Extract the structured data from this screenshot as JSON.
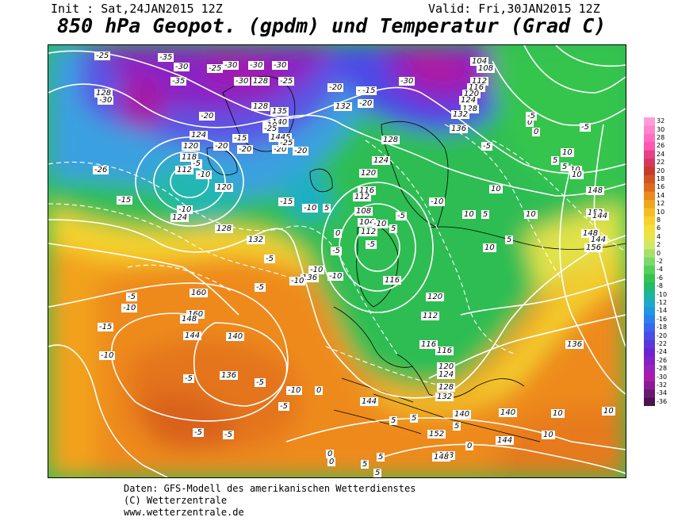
{
  "header": {
    "init": "Init : Sat,24JAN2015 12Z",
    "valid": "Valid: Fri,30JAN2015 12Z",
    "title": "850 hPa Geopot. (gpdm) und Temperatur (Grad C)"
  },
  "legend": {
    "labels": [
      "32",
      "30",
      "28",
      "26",
      "24",
      "22",
      "20",
      "18",
      "16",
      "14",
      "12",
      "10",
      "8",
      "6",
      "4",
      "2",
      "0",
      "-2",
      "-4",
      "-6",
      "-8",
      "-10",
      "-12",
      "-14",
      "-16",
      "-18",
      "-20",
      "-22",
      "-24",
      "-26",
      "-28",
      "-30",
      "-32",
      "-34",
      "-36"
    ],
    "colors": [
      "#ff9ed6",
      "#ff86cc",
      "#ff6ec2",
      "#ff56b0",
      "#e84086",
      "#d8385c",
      "#c83a2e",
      "#d25322",
      "#e06a1c",
      "#eb8a1e",
      "#f0a51c",
      "#f4be22",
      "#f7d12c",
      "#f5de3c",
      "#e6e64a",
      "#cfe86a",
      "#a6df6a",
      "#7cd96a",
      "#56cf5c",
      "#34c54e",
      "#22bb66",
      "#1eb49a",
      "#1ea9c6",
      "#1e98e2",
      "#2a80ee",
      "#3a66ee",
      "#4a4ee6",
      "#5a38dc",
      "#6c24d2",
      "#8420c8",
      "#9a20bc",
      "#a91caa",
      "#8e1a94",
      "#6a1a6e",
      "#4a1450"
    ]
  },
  "map": {
    "geopotential_labels": [
      "128",
      "128",
      "128",
      "135",
      "140",
      "1445",
      "124",
      "120",
      "118",
      "112",
      "120",
      "124",
      "128",
      "132",
      "136",
      "132",
      "128",
      "124",
      "120",
      "116",
      "112",
      "108",
      "104",
      "112",
      "116",
      "120",
      "112",
      "116",
      "116",
      "120",
      "124",
      "128",
      "132",
      "136",
      "140",
      "144",
      "148",
      "152",
      "148",
      "156",
      "160",
      "160",
      "148",
      "144",
      "140",
      "136",
      "144",
      "144",
      "148",
      "152",
      "104",
      "108",
      "112",
      "116",
      "120",
      "124",
      "128",
      "132",
      "136",
      "140",
      "144",
      "148"
    ],
    "temperature_labels": [
      "-25",
      "-30",
      "-35",
      "-30",
      "-35",
      "-30",
      "-30",
      "-25",
      "-30",
      "-25",
      "-20",
      "-30",
      "-20",
      "-25",
      "-30",
      "-20",
      "-15",
      "-10",
      "-20",
      "-25",
      "-20",
      "-15",
      "-20",
      "-25",
      "-20",
      "-26",
      "-15",
      "-10",
      "-5",
      "-10",
      "-15",
      "-10",
      "-5",
      "-10",
      "-5",
      "0",
      "-5",
      "-5",
      "0",
      "5",
      "10",
      "10",
      "5",
      "10",
      "5",
      "10",
      "10",
      "5",
      "10",
      "10",
      "5",
      "5",
      "0",
      "-5",
      "-10",
      "-10",
      "-5",
      "-5",
      "-10",
      "-5",
      "-5",
      "-10",
      "-15",
      "-10",
      "-10",
      "-5",
      "-5",
      "-5",
      "-10",
      "-5",
      "-5",
      "0",
      "0",
      "0",
      "5",
      "5",
      "5",
      "5",
      "5",
      "5",
      "0",
      "10",
      "10",
      "10"
    ]
  },
  "footer": {
    "line1": "Daten: GFS-Modell des amerikanischen Wetterdienstes",
    "line2": "(C) Wetterzentrale",
    "line3": "www.wetterzentrale.de"
  }
}
